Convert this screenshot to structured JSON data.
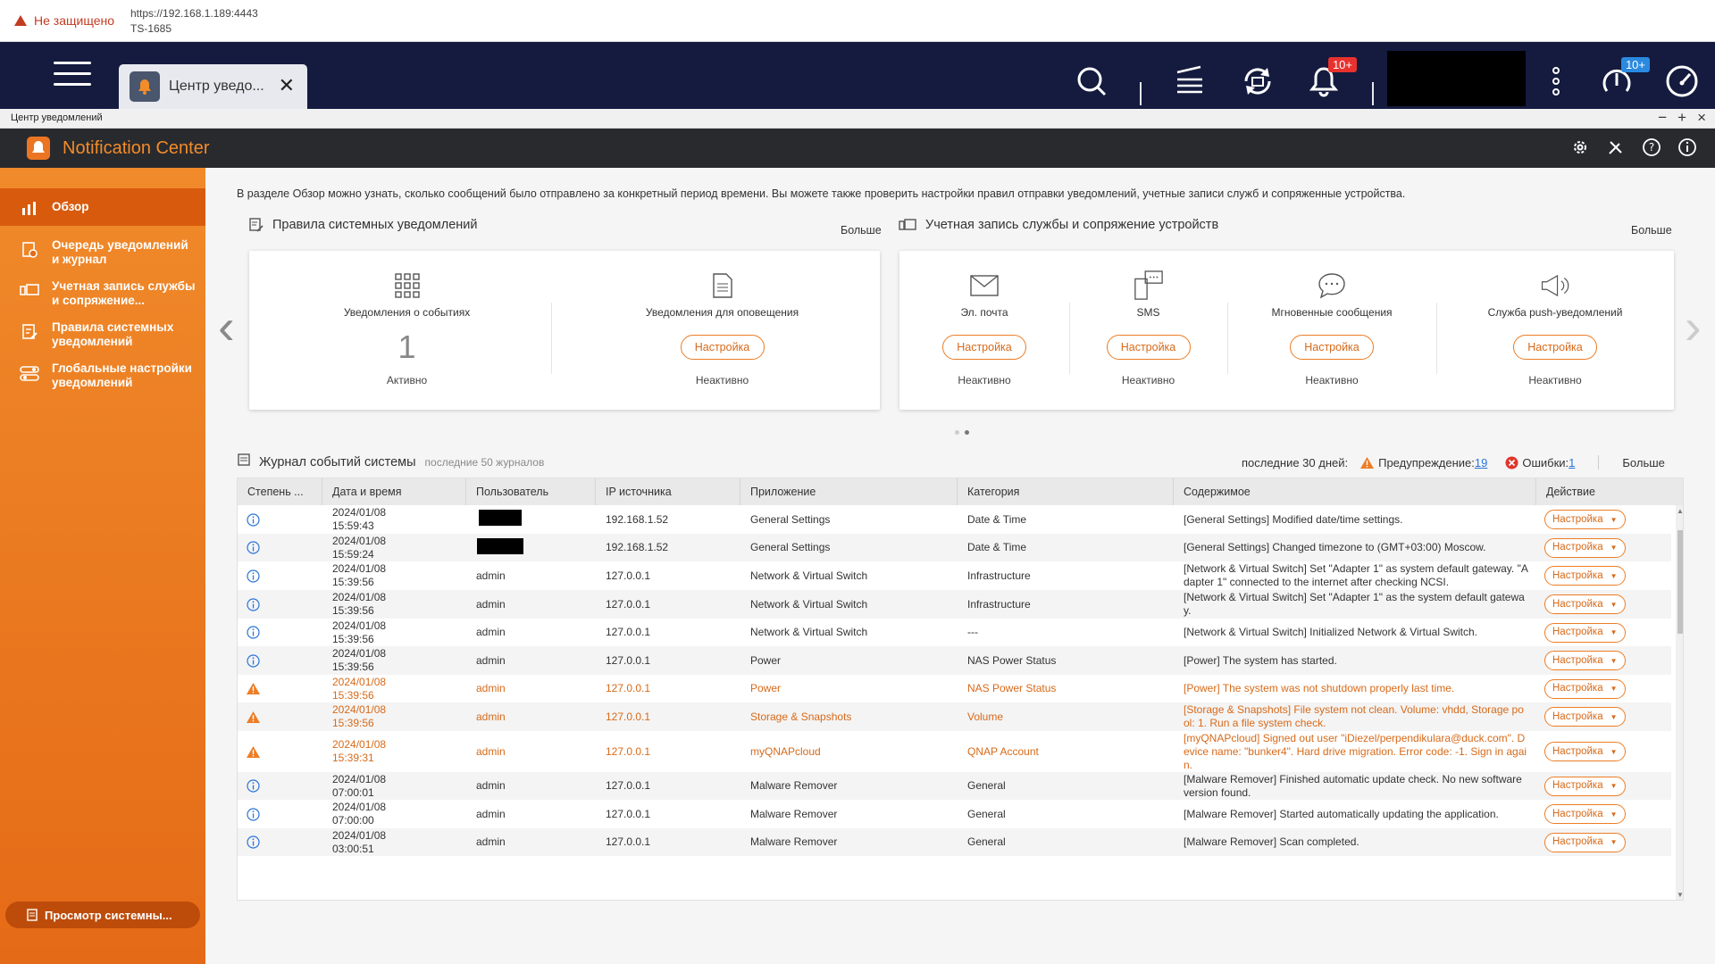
{
  "browser": {
    "insecure_label": "Не защищено",
    "url": "https://192.168.1.189:4443",
    "device": "TS-1685"
  },
  "qts": {
    "tab_label": "Центр уведо...",
    "notif_badge": "10+",
    "status_badge": "10+"
  },
  "window": {
    "title": "Центр уведомлений",
    "min": "−",
    "max": "+",
    "close": "×"
  },
  "app": {
    "name": "Notification Center"
  },
  "sidebar": {
    "items": [
      {
        "label": "Обзор",
        "icon": "bar-chart-icon"
      },
      {
        "label": "Очередь уведомлений и журнал",
        "icon": "queue-log-icon"
      },
      {
        "label": "Учетная запись службы и сопряжение...",
        "icon": "device-pairing-icon"
      },
      {
        "label": "Правила системных уведомлений",
        "icon": "rules-icon"
      },
      {
        "label": "Глобальные настройки уведомлений",
        "icon": "toggle-settings-icon"
      }
    ],
    "bottom_button": "Просмотр системны..."
  },
  "overview": {
    "intro": "В разделе Обзор можно узнать, сколько сообщений было отправлено за конкретный период времени. Вы можете также проверить настройки правил отправки уведомлений, учетные записи служб и сопряженные устройства.",
    "rules_title": "Правила системных уведомлений",
    "rules_more": "Больше",
    "accounts_title": "Учетная запись службы и сопряжение устройств",
    "accounts_more": "Больше",
    "rules_cards": [
      {
        "label": "Уведомления о событиях",
        "value": "1",
        "status": "Активно",
        "icon": "grid-icon"
      },
      {
        "label": "Уведомления для оповещения",
        "button": "Настройка",
        "status": "Неактивно",
        "icon": "document-icon"
      }
    ],
    "account_cards": [
      {
        "label": "Эл. почта",
        "button": "Настройка",
        "status": "Неактивно",
        "icon": "mail-icon"
      },
      {
        "label": "SMS",
        "button": "Настройка",
        "status": "Неактивно",
        "icon": "sms-icon"
      },
      {
        "label": "Мгновенные сообщения",
        "button": "Настройка",
        "status": "Неактивно",
        "icon": "chat-icon"
      },
      {
        "label": "Служба push-уведомлений",
        "button": "Настройка",
        "status": "Неактивно",
        "icon": "megaphone-icon"
      }
    ]
  },
  "log": {
    "title": "Журнал событий системы",
    "subtitle": "последние 50 журналов",
    "period": "последние 30 дней:",
    "warn_label": "Предупреждение:",
    "warn_count": "19",
    "err_label": "Ошибки:",
    "err_count": "1",
    "more": "Больше",
    "columns": [
      "Степень ...",
      "Дата и время",
      "Пользователь",
      "IP источника",
      "Приложение",
      "Категория",
      "Содержимое",
      "Действие"
    ],
    "action_label": "Настройка",
    "rows": [
      {
        "level": "info",
        "date": "2024/01/08",
        "time": "15:59:43",
        "user": "",
        "redacted": true,
        "ip": "192.168.1.52",
        "app": "General Settings",
        "cat": "Date & Time",
        "content": "[General Settings] Modified date/time settings."
      },
      {
        "level": "info",
        "date": "2024/01/08",
        "time": "15:59:24",
        "user": "",
        "redacted": true,
        "ip": "192.168.1.52",
        "app": "General Settings",
        "cat": "Date & Time",
        "content": "[General Settings] Changed timezone to (GMT+03:00) Moscow."
      },
      {
        "level": "info",
        "date": "2024/01/08",
        "time": "15:39:56",
        "user": "admin",
        "ip": "127.0.0.1",
        "app": "Network & Virtual Switch",
        "cat": "Infrastructure",
        "content": "[Network & Virtual Switch] Set \"Adapter 1\" as system default gateway. \"Adapter 1\" connected to the internet after checking NCSI."
      },
      {
        "level": "info",
        "date": "2024/01/08",
        "time": "15:39:56",
        "user": "admin",
        "ip": "127.0.0.1",
        "app": "Network & Virtual Switch",
        "cat": "Infrastructure",
        "content": "[Network & Virtual Switch] Set \"Adapter 1\" as the system default gateway."
      },
      {
        "level": "info",
        "date": "2024/01/08",
        "time": "15:39:56",
        "user": "admin",
        "ip": "127.0.0.1",
        "app": "Network & Virtual Switch",
        "cat": "---",
        "content": "[Network & Virtual Switch] Initialized Network & Virtual Switch."
      },
      {
        "level": "info",
        "date": "2024/01/08",
        "time": "15:39:56",
        "user": "admin",
        "ip": "127.0.0.1",
        "app": "Power",
        "cat": "NAS Power Status",
        "content": "[Power] The system has started."
      },
      {
        "level": "warn",
        "date": "2024/01/08",
        "time": "15:39:56",
        "user": "admin",
        "ip": "127.0.0.1",
        "app": "Power",
        "cat": "NAS Power Status",
        "content": "[Power] The system was not shutdown properly last time."
      },
      {
        "level": "warn",
        "date": "2024/01/08",
        "time": "15:39:56",
        "user": "admin",
        "ip": "127.0.0.1",
        "app": "Storage & Snapshots",
        "cat": "Volume",
        "content": "[Storage & Snapshots] File system not clean. Volume: vhdd, Storage pool: 1. Run a file system check."
      },
      {
        "level": "warn",
        "date": "2024/01/08",
        "time": "15:39:31",
        "user": "admin",
        "ip": "127.0.0.1",
        "app": "myQNAPcloud",
        "cat": "QNAP Account",
        "content": "[myQNAPcloud] Signed out user \"iDiezel/perpendikulara@duck.com\". Device name: \"bunker4\". Hard drive migration. Error code: -1. Sign in again."
      },
      {
        "level": "info",
        "date": "2024/01/08",
        "time": "07:00:01",
        "user": "admin",
        "ip": "127.0.0.1",
        "app": "Malware Remover",
        "cat": "General",
        "content": "[Malware Remover] Finished automatic update check. No new software version found."
      },
      {
        "level": "info",
        "date": "2024/01/08",
        "time": "07:00:00",
        "user": "admin",
        "ip": "127.0.0.1",
        "app": "Malware Remover",
        "cat": "General",
        "content": "[Malware Remover] Started automatically updating the application."
      },
      {
        "level": "info",
        "date": "2024/01/08",
        "time": "03:00:51",
        "user": "admin",
        "ip": "127.0.0.1",
        "app": "Malware Remover",
        "cat": "General",
        "content": "[Malware Remover] Scan completed."
      }
    ]
  },
  "colors": {
    "accent": "#ec7d26",
    "warn": "#d76a1a",
    "info": "#2a74d8",
    "error": "#e0352b",
    "qts_bar": "#141b3f"
  }
}
